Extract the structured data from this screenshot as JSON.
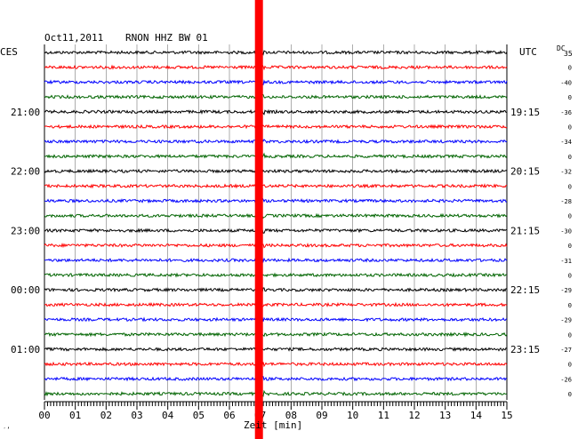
{
  "header": {
    "date": "Oct11,2011",
    "station": "RNON HHZ BW 01",
    "left_zone": "CES",
    "right_zone": "UTC",
    "dc_label": "DC",
    "dc_first": "35"
  },
  "footer": {
    "xlabel": "Zeit [min]",
    "corner_mark": "′’"
  },
  "colors": {
    "trace_cycle": [
      "#000000",
      "#ff0000",
      "#0000ff",
      "#006400"
    ],
    "event": "#ff0000"
  },
  "chart_data": {
    "type": "line",
    "title": "Oct11,2011 RNON HHZ BW 01",
    "xlabel": "Zeit [min]",
    "x_ticks": [
      "00",
      "01",
      "02",
      "03",
      "04",
      "05",
      "06",
      "07",
      "08",
      "09",
      "10",
      "11",
      "12",
      "13",
      "14",
      "15"
    ],
    "xlim": [
      0,
      15
    ],
    "grid": true,
    "trace_count": 24,
    "left_time_labels": [
      "21:00",
      "22:00",
      "23:00",
      "00:00",
      "01:00"
    ],
    "right_time_labels": [
      "19:15",
      "20:15",
      "21:15",
      "22:15",
      "23:15"
    ],
    "dc_offsets": [
      "0",
      "-40",
      "0",
      "-36",
      "0",
      "-34",
      "0",
      "-32",
      "0",
      "-28",
      "0",
      "-30",
      "0",
      "-31",
      "0",
      "-29",
      "0",
      "-29",
      "0",
      "-27",
      "0",
      "-26",
      "0"
    ],
    "event_minute": 7.0
  }
}
